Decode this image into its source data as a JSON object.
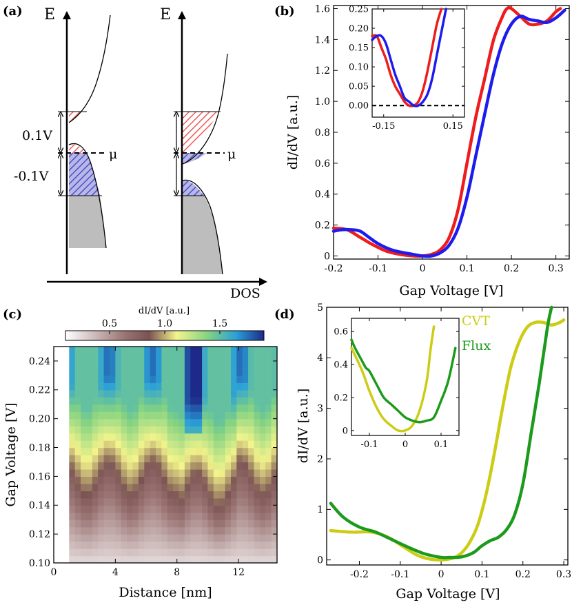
{
  "panel_labels": [
    "(a)",
    "(b)",
    "(c)",
    "(d)"
  ],
  "schematic": {
    "energy_label": "E",
    "dos_label": "DOS",
    "mu_label": "μ",
    "level_labels": [
      "0.1V",
      "-0.1V"
    ],
    "colors": {
      "red_hatch": "#f05a5a",
      "blue_hatch": "#4f4fbf",
      "filled": "#bdbdbd"
    }
  },
  "chart_data": [
    {
      "id": "b",
      "type": "line",
      "xlabel": "Gap Voltage [V]",
      "ylabel": "dI/dV [a.u.]",
      "xlim": [
        -0.2,
        0.33
      ],
      "ylim": [
        -0.02,
        1.62
      ],
      "xticks": [
        -0.2,
        -0.1,
        0,
        0.1,
        0.2,
        0.3
      ],
      "xtick_labels": [
        "-0.2",
        "-0.1",
        "0",
        "0.1",
        "0.2",
        "0.3"
      ],
      "yticks": [
        0,
        0.2,
        0.4,
        0.6,
        0.8,
        1.0,
        1.2,
        1.4,
        1.6
      ],
      "ytick_labels": [
        "0",
        "0.2",
        "0.4",
        "0.6",
        "0.8",
        "1.0",
        "1.2",
        "1.4",
        "1.6"
      ],
      "series": [
        {
          "name": "red",
          "color": "#ee1c1c",
          "x": [
            -0.2,
            -0.17,
            -0.14,
            -0.11,
            -0.08,
            -0.05,
            -0.02,
            0.0,
            0.02,
            0.04,
            0.06,
            0.08,
            0.1,
            0.12,
            0.14,
            0.16,
            0.18,
            0.19,
            0.2,
            0.22,
            0.24,
            0.26,
            0.28,
            0.3,
            0.31
          ],
          "y": [
            0.18,
            0.17,
            0.12,
            0.07,
            0.03,
            0.01,
            0.0,
            0.0,
            0.01,
            0.04,
            0.12,
            0.3,
            0.6,
            0.9,
            1.15,
            1.4,
            1.55,
            1.6,
            1.6,
            1.55,
            1.5,
            1.5,
            1.52,
            1.58,
            1.6
          ]
        },
        {
          "name": "blue",
          "color": "#1c1cee",
          "x": [
            -0.2,
            -0.18,
            -0.16,
            -0.14,
            -0.12,
            -0.1,
            -0.07,
            -0.04,
            -0.02,
            0.0,
            0.02,
            0.04,
            0.06,
            0.08,
            0.1,
            0.12,
            0.14,
            0.16,
            0.18,
            0.2,
            0.22,
            0.24,
            0.26,
            0.28,
            0.3,
            0.32
          ],
          "y": [
            0.16,
            0.17,
            0.17,
            0.16,
            0.12,
            0.08,
            0.04,
            0.02,
            0.01,
            0.0,
            0.0,
            0.02,
            0.07,
            0.18,
            0.38,
            0.65,
            0.92,
            1.18,
            1.38,
            1.5,
            1.55,
            1.53,
            1.52,
            1.51,
            1.54,
            1.59
          ]
        }
      ],
      "inset": {
        "xlim": [
          -0.2,
          0.2
        ],
        "ylim": [
          -0.03,
          0.25
        ],
        "xticks": [
          -0.15,
          0.15
        ],
        "xtick_labels": [
          "-0.15",
          "0.15"
        ],
        "yticks": [
          0,
          0.05,
          0.1,
          0.15,
          0.2,
          0.25
        ],
        "ytick_labels": [
          "0.00",
          "0.05",
          "0.10",
          "0.15",
          "0.20",
          "0.25"
        ],
        "dashed_zero": true,
        "series": [
          {
            "name": "red",
            "color": "#ee1c1c",
            "x": [
              -0.2,
              -0.18,
              -0.16,
              -0.14,
              -0.12,
              -0.1,
              -0.08,
              -0.06,
              -0.04,
              -0.02,
              0.0,
              0.02,
              0.04,
              0.06,
              0.08,
              0.1
            ],
            "y": [
              0.18,
              0.18,
              0.15,
              0.12,
              0.08,
              0.05,
              0.03,
              0.01,
              0.0,
              0.0,
              0.01,
              0.04,
              0.09,
              0.15,
              0.21,
              0.25
            ]
          },
          {
            "name": "blue",
            "color": "#1c1cee",
            "x": [
              -0.2,
              -0.18,
              -0.16,
              -0.14,
              -0.12,
              -0.1,
              -0.08,
              -0.06,
              -0.04,
              -0.02,
              0.0,
              0.02,
              0.04,
              0.06,
              0.08,
              0.1,
              0.12
            ],
            "y": [
              0.17,
              0.18,
              0.18,
              0.16,
              0.12,
              0.08,
              0.05,
              0.02,
              0.01,
              0.0,
              0.0,
              0.01,
              0.03,
              0.07,
              0.13,
              0.19,
              0.25
            ]
          }
        ]
      }
    },
    {
      "id": "c",
      "type": "heatmap",
      "xlabel": "Distance [nm]",
      "ylabel": "Gap Voltage [V]",
      "xlim": [
        0,
        14.5
      ],
      "ylim": [
        0.1,
        0.25
      ],
      "xticks": [
        0,
        4,
        8,
        12
      ],
      "xtick_labels": [
        "0",
        "4",
        "8",
        "12"
      ],
      "yticks": [
        0.1,
        0.12,
        0.14,
        0.16,
        0.18,
        0.2,
        0.22,
        0.24
      ],
      "ytick_labels": [
        "0.10",
        "0.12",
        "0.14",
        "0.16",
        "0.18",
        "0.20",
        "0.22",
        "0.24"
      ],
      "colorbar": {
        "label": "dI/dV [a.u.]",
        "range": [
          0.1,
          1.9
        ],
        "ticks": [
          0.5,
          1.0,
          1.5
        ],
        "tick_labels": [
          "0.5",
          "1.0",
          "1.5"
        ]
      }
    },
    {
      "id": "d",
      "type": "line",
      "xlabel": "Gap Voltage [V]",
      "ylabel": "dI/dV [a.u.]",
      "xlim": [
        -0.28,
        0.31
      ],
      "ylim": [
        -0.1,
        5.0
      ],
      "xticks": [
        -0.2,
        -0.1,
        0,
        0.1,
        0.2,
        0.3
      ],
      "xtick_labels": [
        "-0.2",
        "-0.1",
        "0",
        "0.1",
        "0.2",
        "0.3"
      ],
      "yticks": [
        0,
        1,
        2,
        3,
        4,
        5
      ],
      "ytick_labels": [
        "0",
        "1",
        "2",
        "3",
        "4",
        "5"
      ],
      "legend": [
        "CVT",
        "Flux"
      ],
      "series": [
        {
          "name": "CVT",
          "color": "#cccc14",
          "x": [
            -0.27,
            -0.22,
            -0.17,
            -0.13,
            -0.09,
            -0.06,
            -0.03,
            0.0,
            0.03,
            0.05,
            0.07,
            0.09,
            0.11,
            0.13,
            0.15,
            0.17,
            0.19,
            0.21,
            0.23,
            0.25,
            0.27,
            0.29,
            0.3
          ],
          "y": [
            0.58,
            0.55,
            0.55,
            0.45,
            0.25,
            0.1,
            0.02,
            0.0,
            0.04,
            0.14,
            0.35,
            0.7,
            1.3,
            2.1,
            3.0,
            3.8,
            4.3,
            4.6,
            4.7,
            4.7,
            4.65,
            4.7,
            4.75
          ]
        },
        {
          "name": "Flux",
          "color": "#1c9a1c",
          "x": [
            -0.27,
            -0.24,
            -0.2,
            -0.16,
            -0.12,
            -0.08,
            -0.04,
            0.0,
            0.02,
            0.04,
            0.06,
            0.08,
            0.1,
            0.12,
            0.14,
            0.16,
            0.18,
            0.2,
            0.22,
            0.24,
            0.26,
            0.27
          ],
          "y": [
            1.12,
            0.85,
            0.65,
            0.55,
            0.4,
            0.25,
            0.12,
            0.05,
            0.05,
            0.05,
            0.08,
            0.15,
            0.28,
            0.38,
            0.45,
            0.6,
            0.9,
            1.5,
            2.5,
            3.5,
            4.6,
            5.0
          ]
        }
      ],
      "inset": {
        "xlim": [
          -0.15,
          0.15
        ],
        "ylim": [
          -0.03,
          0.68
        ],
        "xticks": [
          -0.1,
          0,
          0.1
        ],
        "xtick_labels": [
          "-0.1",
          "0",
          "0.1"
        ],
        "yticks": [
          0,
          0.2,
          0.4,
          0.6
        ],
        "ytick_labels": [
          "0",
          "0.2",
          "0.4",
          "0.6"
        ],
        "series": [
          {
            "name": "CVT",
            "color": "#cccc14",
            "x": [
              -0.15,
              -0.12,
              -0.1,
              -0.08,
              -0.06,
              -0.04,
              -0.02,
              0.0,
              0.02,
              0.04,
              0.06,
              0.07,
              0.08
            ],
            "y": [
              0.5,
              0.36,
              0.24,
              0.14,
              0.07,
              0.03,
              0.0,
              0.0,
              0.03,
              0.12,
              0.3,
              0.48,
              0.63
            ]
          },
          {
            "name": "Flux",
            "color": "#1c9a1c",
            "x": [
              -0.15,
              -0.14,
              -0.12,
              -0.11,
              -0.1,
              -0.08,
              -0.06,
              -0.04,
              -0.02,
              0.0,
              0.02,
              0.04,
              0.06,
              0.08,
              0.1,
              0.12,
              0.14
            ],
            "y": [
              0.55,
              0.5,
              0.42,
              0.38,
              0.36,
              0.28,
              0.2,
              0.16,
              0.12,
              0.08,
              0.06,
              0.05,
              0.06,
              0.08,
              0.18,
              0.3,
              0.5
            ]
          }
        ]
      }
    }
  ]
}
